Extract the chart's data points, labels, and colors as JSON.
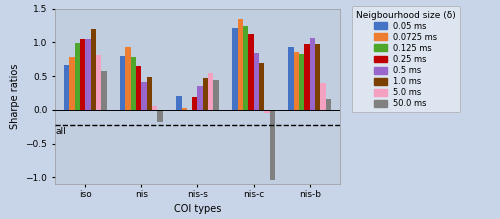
{
  "categories": [
    "iso",
    "nis",
    "nis-s",
    "nis-c",
    "nis-b"
  ],
  "xlabel": "COI types",
  "ylabel": "Sharpe ratios",
  "legend_title": "Neigbourhood size (δ)",
  "legend_labels": [
    "0.05 ms",
    "0.0725 ms",
    "0.125 ms",
    "0.25 ms",
    "0.5 ms",
    "1.0 ms",
    "5.0 ms",
    "50.0 ms"
  ],
  "bar_colors": [
    "#4472c4",
    "#ed7d31",
    "#4ea72a",
    "#c00000",
    "#9966cc",
    "#7b3f00",
    "#f4a0c0",
    "#808080"
  ],
  "values": [
    [
      0.67,
      0.79,
      0.99,
      1.05,
      1.05,
      1.2,
      0.82,
      0.57
    ],
    [
      0.8,
      0.93,
      0.79,
      0.65,
      0.42,
      0.48,
      0.06,
      -0.18
    ],
    [
      0.2,
      0.03,
      0.0,
      0.19,
      0.35,
      0.47,
      0.54,
      0.44
    ],
    [
      1.22,
      1.35,
      1.24,
      1.12,
      0.84,
      0.7,
      -0.04,
      -1.04
    ],
    [
      0.93,
      0.86,
      0.83,
      0.98,
      1.06,
      0.97,
      0.4,
      0.16
    ]
  ],
  "dashed_line_y": -0.23,
  "dashed_line_label": "all",
  "ylim": [
    -1.1,
    1.5
  ],
  "yticks": [
    -1.0,
    -0.5,
    0.0,
    0.5,
    1.0,
    1.5
  ],
  "background_color": "#c8d4e8",
  "plot_background_color": "#c0cedf"
}
